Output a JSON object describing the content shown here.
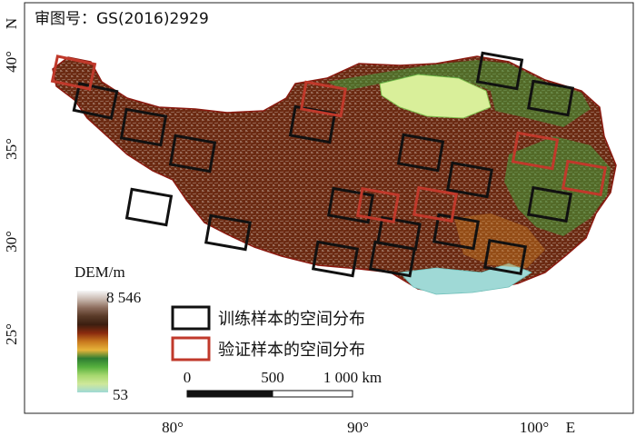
{
  "approval": "审图号：GS(2016)2929",
  "axes": {
    "x_ticks": [
      "80°",
      "90°",
      "100°"
    ],
    "x_unit": "E",
    "y_ticks": [
      "40°",
      "35°",
      "30°",
      "25°"
    ],
    "y_unit": "N"
  },
  "dem_legend": {
    "title": "DEM/m",
    "max_label": "8 546",
    "min_label": "53",
    "max_value": 8546,
    "min_value": 53,
    "colors": [
      "#f7f7f7",
      "#c9b9b0",
      "#8e6e5e",
      "#5a3a28",
      "#3b1e10",
      "#8a2a0e",
      "#c8781e",
      "#e6b43a",
      "#2e7d32",
      "#56b03e",
      "#a6d86e",
      "#cfe89a",
      "#9fd9d6"
    ]
  },
  "box_legend": {
    "training": {
      "label": "训练样本的空间分布",
      "color": "#111111"
    },
    "validation": {
      "label": "验证样本的空间分布",
      "color": "#c0392b"
    }
  },
  "scale_bar": {
    "labels": [
      "0",
      "500",
      "1 000 km"
    ]
  },
  "colors": {
    "plateau": "#6b2a12",
    "plateau_light": "#8e4a2c",
    "basin": "#d9ef9a",
    "green": "#3f9e3a",
    "lowland": "#9fd9d6"
  }
}
